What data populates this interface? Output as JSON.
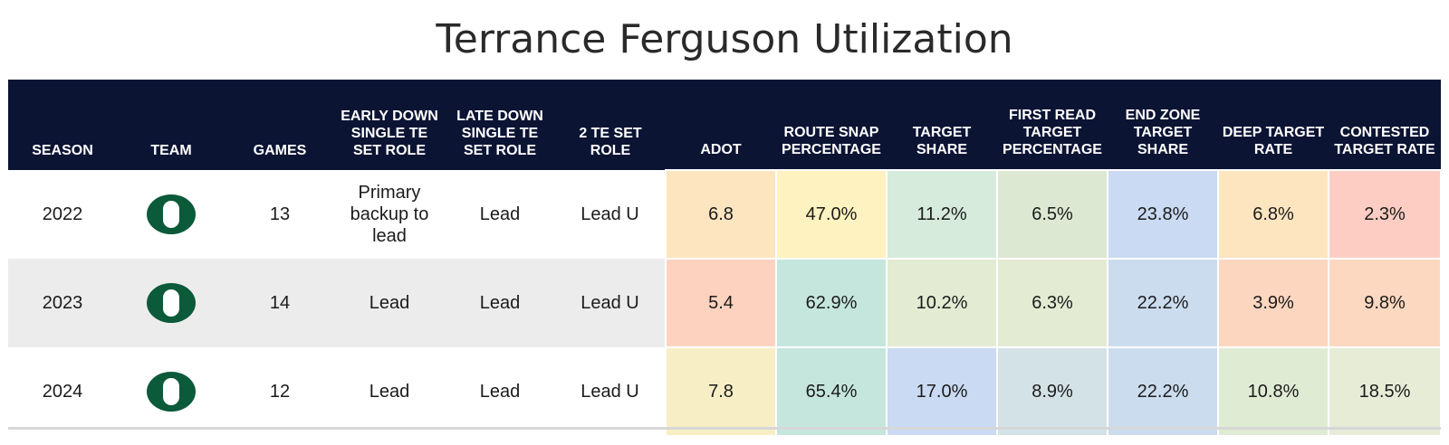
{
  "title": "Terrance Ferguson Utilization",
  "colors": {
    "header_bg": "#0c1434",
    "oregon_green": "#0b5a3a",
    "row_alt": "#ececec"
  },
  "chart_data": {
    "type": "table",
    "title": "Terrance Ferguson Utilization",
    "columns": [
      "SEASON",
      "TEAM",
      "GAMES",
      "EARLY DOWN SINGLE TE SET ROLE",
      "LATE DOWN SINGLE TE SET ROLE",
      "2 TE SET ROLE",
      "ADOT",
      "ROUTE SNAP PERCENTAGE",
      "TARGET SHARE",
      "FIRST READ TARGET PERCENTAGE",
      "END ZONE TARGET SHARE",
      "DEEP TARGET RATE",
      "CONTESTED TARGET RATE"
    ],
    "rows": [
      {
        "season": "2022",
        "team": "Oregon O logo",
        "games": "13",
        "early_down_role": "Primary backup to lead",
        "late_down_role": "Lead",
        "two_te_role": "Lead U",
        "metrics": [
          {
            "value": "6.8",
            "color": "#fde5c0"
          },
          {
            "value": "47.0%",
            "color": "#fdf2c0"
          },
          {
            "value": "11.2%",
            "color": "#d6ebdc"
          },
          {
            "value": "6.5%",
            "color": "#dde8d2"
          },
          {
            "value": "23.8%",
            "color": "#c9daf2"
          },
          {
            "value": "6.8%",
            "color": "#fde5c0"
          },
          {
            "value": "2.3%",
            "color": "#fdcdc3"
          }
        ]
      },
      {
        "season": "2023",
        "team": "Oregon O logo",
        "games": "14",
        "early_down_role": "Lead",
        "late_down_role": "Lead",
        "two_te_role": "Lead U",
        "metrics": [
          {
            "value": "5.4",
            "color": "#fdd3c0"
          },
          {
            "value": "62.9%",
            "color": "#c5e6dd"
          },
          {
            "value": "10.2%",
            "color": "#e3ebd3"
          },
          {
            "value": "6.3%",
            "color": "#e3ebd3"
          },
          {
            "value": "22.2%",
            "color": "#cbdcef"
          },
          {
            "value": "3.9%",
            "color": "#fdd6c0"
          },
          {
            "value": "9.8%",
            "color": "#fdd8c0"
          }
        ]
      },
      {
        "season": "2024",
        "team": "Oregon O logo",
        "games": "12",
        "early_down_role": "Lead",
        "late_down_role": "Lead",
        "two_te_role": "Lead U",
        "metrics": [
          {
            "value": "7.8",
            "color": "#f7eec6"
          },
          {
            "value": "65.4%",
            "color": "#c5e6dd"
          },
          {
            "value": "17.0%",
            "color": "#c9daf2"
          },
          {
            "value": "8.9%",
            "color": "#d3e2e6"
          },
          {
            "value": "22.2%",
            "color": "#cbdcef"
          },
          {
            "value": "10.8%",
            "color": "#e0ebd3"
          },
          {
            "value": "18.5%",
            "color": "#e6ecd6"
          }
        ]
      }
    ]
  }
}
